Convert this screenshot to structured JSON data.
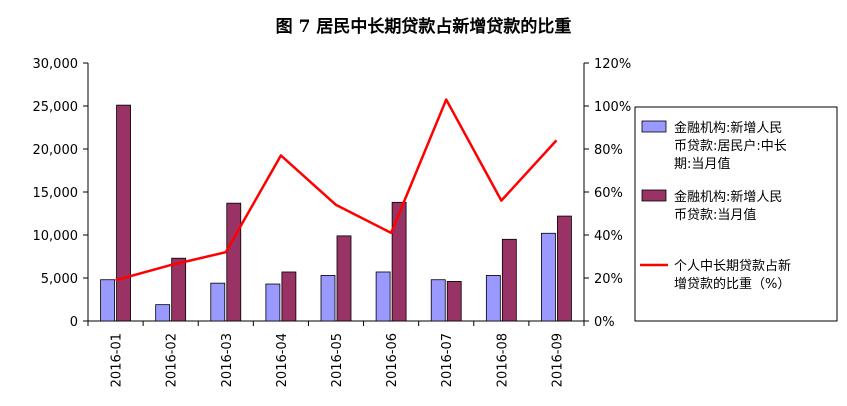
{
  "chart_data": {
    "type": "bar",
    "title": "图 7  居民中长期贷款占新增贷款的比重",
    "categories": [
      "2016-01",
      "2016-02",
      "2016-03",
      "2016-04",
      "2016-05",
      "2016-06",
      "2016-07",
      "2016-08",
      "2016-09"
    ],
    "series": [
      {
        "name_lines": [
          "金融机构:新增人民",
          "币贷款:居民户:中长",
          "期:当月值"
        ],
        "type": "bar",
        "axis": "left",
        "color": "#9999ff",
        "values": [
          4800,
          1900,
          4400,
          4300,
          5300,
          5700,
          4800,
          5300,
          10200
        ]
      },
      {
        "name_lines": [
          "金融机构:新增人民",
          "币贷款:当月值"
        ],
        "type": "bar",
        "axis": "left",
        "color": "#993366",
        "values": [
          25100,
          7300,
          13700,
          5700,
          9900,
          13800,
          4600,
          9500,
          12200
        ]
      },
      {
        "name_lines": [
          "个人中长期贷款占新",
          "增贷款的比重（%）"
        ],
        "type": "line",
        "axis": "right",
        "color": "#ff0000",
        "values": [
          19,
          26,
          32,
          77,
          54,
          41,
          103,
          56,
          84
        ]
      }
    ],
    "y_left": {
      "min": 0,
      "max": 30000,
      "ticks": [
        "0",
        "5,000",
        "10,000",
        "15,000",
        "20,000",
        "25,000",
        "30,000"
      ]
    },
    "y_right": {
      "min": 0,
      "max": 120,
      "ticks": [
        "0%",
        "20%",
        "40%",
        "60%",
        "80%",
        "100%",
        "120%"
      ]
    },
    "grid": false,
    "legend_position": "right"
  }
}
